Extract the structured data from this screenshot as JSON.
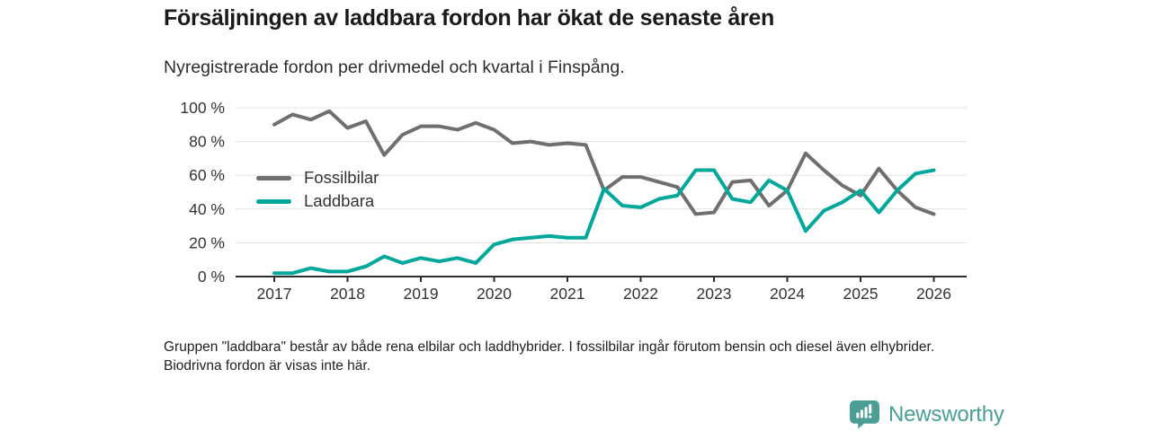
{
  "header": {
    "title": "Försäljningen av laddbara fordon har ökat de senaste åren",
    "subtitle": "Nyregistrerade fordon per drivmedel och kvartal i Finspång."
  },
  "chart_data": {
    "type": "line",
    "title": "Försäljningen av laddbara fordon har ökat de senaste åren",
    "subtitle": "Nyregistrerade fordon per drivmedel och kvartal i Finspång.",
    "x_unit": "kvartal",
    "x_range": [
      "2017 Q1",
      "2026 Q1"
    ],
    "points_per_year": 4,
    "x_tick_labels": [
      "2017",
      "2018",
      "2019",
      "2020",
      "2021",
      "2022",
      "2023",
      "2024",
      "2025",
      "2026"
    ],
    "y_tick_values": [
      0,
      20,
      40,
      60,
      80,
      100
    ],
    "y_tick_labels": [
      "0 %",
      "20 %",
      "40 %",
      "60 %",
      "80 %",
      "100 %"
    ],
    "ylim": [
      0,
      100
    ],
    "grid": true,
    "legend_position": "inside-left",
    "series": [
      {
        "name": "Fossilbilar",
        "color": "#6f6f6f",
        "values": [
          90,
          96,
          93,
          98,
          88,
          92,
          72,
          84,
          89,
          89,
          87,
          91,
          87,
          79,
          80,
          78,
          79,
          78,
          51,
          59,
          59,
          56,
          53,
          37,
          38,
          56,
          57,
          42,
          51,
          73,
          63,
          54,
          48,
          64,
          51,
          41,
          37
        ]
      },
      {
        "name": "Laddbara",
        "color": "#00a79b",
        "values": [
          2,
          2,
          5,
          3,
          3,
          6,
          12,
          8,
          11,
          9,
          11,
          8,
          19,
          22,
          23,
          24,
          23,
          23,
          52,
          42,
          41,
          46,
          48,
          63,
          63,
          46,
          44,
          57,
          51,
          27,
          39,
          44,
          51,
          38,
          51,
          61,
          63
        ]
      }
    ]
  },
  "footer": {
    "note": "Gruppen \"laddbara\" består av både rena elbilar och laddhybrider. I fossilbilar ingår förutom bensin och diesel även elhybrider. Biodrivna fordon är visas inte här."
  },
  "branding": {
    "logo_text": "Newsworthy",
    "logo_color": "#4a9e96",
    "logo_icon": "bar-chart-speech-bubble-icon"
  }
}
